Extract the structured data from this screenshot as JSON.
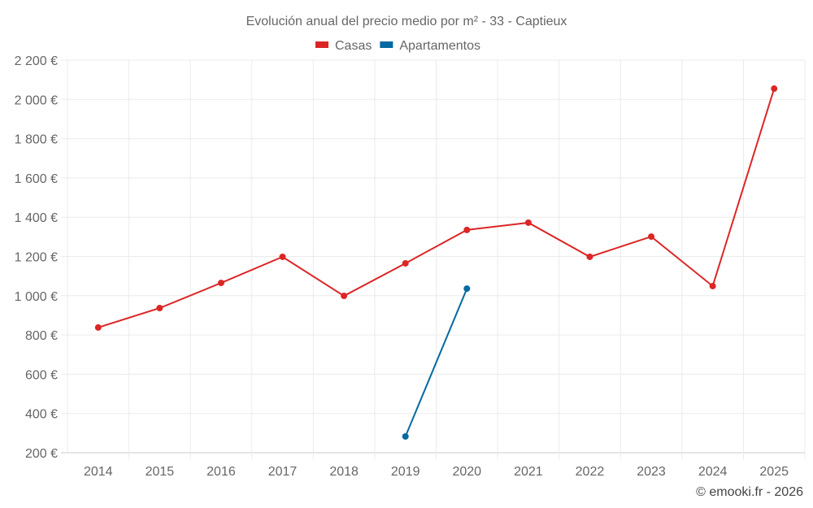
{
  "chart_data": {
    "type": "line",
    "title": "Evolución anual del precio medio por m² - 33 - Captieux",
    "categories": [
      "2014",
      "2015",
      "2016",
      "2017",
      "2018",
      "2019",
      "2020",
      "2021",
      "2022",
      "2023",
      "2024",
      "2025"
    ],
    "series": [
      {
        "name": "Casas",
        "color": "#dc2626",
        "values": [
          838,
          937,
          1065,
          1198,
          999,
          1165,
          1335,
          1372,
          1198,
          1301,
          1049,
          2055
        ]
      },
      {
        "name": "Apartamentos",
        "color": "#0369a1",
        "values": [
          null,
          null,
          null,
          null,
          null,
          283,
          1036,
          null,
          null,
          null,
          null,
          null
        ]
      }
    ],
    "ylim": [
      200,
      2200
    ],
    "yticks": [
      200,
      400,
      600,
      800,
      1000,
      1200,
      1400,
      1600,
      1800,
      2000,
      2200
    ],
    "ytick_labels": [
      "200 €",
      "400 €",
      "600 €",
      "800 €",
      "1 000 €",
      "1 200 €",
      "1 400 €",
      "1 600 €",
      "1 800 €",
      "2 000 €",
      "2 200 €"
    ],
    "xlabel": "",
    "ylabel": "",
    "grid": true,
    "legend": "top-center"
  },
  "footer": {
    "credit": "© emooki.fr - 2026"
  }
}
